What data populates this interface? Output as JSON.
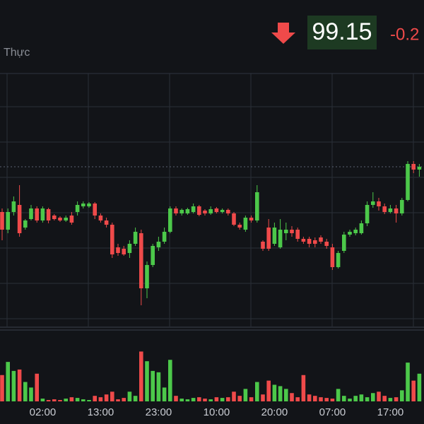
{
  "chart_data": {
    "type": "candlestick",
    "symbol_label": "Thực",
    "last_price": 99.15,
    "change_text": "-0.2",
    "categories": [
      null,
      null,
      null,
      null,
      null,
      null,
      null,
      "02:00",
      null,
      null,
      null,
      null,
      null,
      null,
      null,
      null,
      null,
      "13:00",
      null,
      null,
      null,
      null,
      null,
      null,
      null,
      null,
      null,
      "23:00",
      null,
      null,
      null,
      null,
      null,
      null,
      null,
      null,
      null,
      "10:00",
      null,
      null,
      null,
      null,
      null,
      null,
      null,
      null,
      null,
      "20:00",
      null,
      null,
      null,
      null,
      null,
      null,
      null,
      null,
      null,
      "07:00",
      null,
      null,
      null,
      null,
      null,
      null,
      null,
      null,
      null,
      "17:00",
      null,
      null,
      null,
      null,
      null
    ],
    "open": [
      98.51,
      98.26,
      98.51,
      98.61,
      98.29,
      98.41,
      98.56,
      98.39,
      98.55,
      98.46,
      98.43,
      98.39,
      98.46,
      98.51,
      98.59,
      98.59,
      98.63,
      98.46,
      98.39,
      98.33,
      98.01,
      97.99,
      97.93,
      98.06,
      98.21,
      97.43,
      97.76,
      98.01,
      98.09,
      98.23,
      98.56,
      98.49,
      98.49,
      98.51,
      98.59,
      98.53,
      98.49,
      98.56,
      98.51,
      98.54,
      98.49,
      98.33,
      98.26,
      98.43,
      98.39,
      98.09,
      98.29,
      98.06,
      98.01,
      98.21,
      98.26,
      98.26,
      98.13,
      98.13,
      98.11,
      98.15,
      98.09,
      98.01,
      97.73,
      97.96,
      98.19,
      98.21,
      98.21,
      98.35,
      98.61,
      98.66,
      98.59,
      98.51,
      98.56,
      98.49,
      98.68,
      99.19,
      99.11
    ],
    "high": [
      98.56,
      98.56,
      98.73,
      98.89,
      98.41,
      98.61,
      98.59,
      98.59,
      98.57,
      98.48,
      98.45,
      98.46,
      98.51,
      98.66,
      98.66,
      98.65,
      98.65,
      98.49,
      98.43,
      98.36,
      98.06,
      98.03,
      98.11,
      98.29,
      98.26,
      97.81,
      98.06,
      98.16,
      98.29,
      98.59,
      98.59,
      98.56,
      98.57,
      98.63,
      98.61,
      98.55,
      98.59,
      98.58,
      98.56,
      98.56,
      98.51,
      98.36,
      98.46,
      98.46,
      98.89,
      98.11,
      98.41,
      98.36,
      98.41,
      98.36,
      98.31,
      98.29,
      98.16,
      98.16,
      98.15,
      98.18,
      98.13,
      98.06,
      97.96,
      98.23,
      98.26,
      98.29,
      98.39,
      98.66,
      98.79,
      98.71,
      98.63,
      98.61,
      98.61,
      98.71,
      99.23,
      99.23,
      99.19
    ],
    "low": [
      98.11,
      98.21,
      98.46,
      98.16,
      98.26,
      98.39,
      98.36,
      98.36,
      98.35,
      98.39,
      98.37,
      98.37,
      98.33,
      98.46,
      98.56,
      98.57,
      98.41,
      98.36,
      98.29,
      97.86,
      97.89,
      97.89,
      97.86,
      98.03,
      97.19,
      97.29,
      97.73,
      97.96,
      98.06,
      98.21,
      98.46,
      98.46,
      98.47,
      98.49,
      98.45,
      98.46,
      98.47,
      98.49,
      98.49,
      98.46,
      98.31,
      98.26,
      98.23,
      98.36,
      98.36,
      97.96,
      97.96,
      98.03,
      97.99,
      98.11,
      98.16,
      98.09,
      98.06,
      98.01,
      98.01,
      98.06,
      97.99,
      97.69,
      97.71,
      97.93,
      98.16,
      98.18,
      98.19,
      98.31,
      98.57,
      98.53,
      98.48,
      98.49,
      98.36,
      98.46,
      98.66,
      99.06,
      99.01
    ],
    "close": [
      98.26,
      98.51,
      98.66,
      98.21,
      98.39,
      98.56,
      98.39,
      98.56,
      98.39,
      98.41,
      98.39,
      98.43,
      98.36,
      98.61,
      98.63,
      98.63,
      98.46,
      98.39,
      98.33,
      97.91,
      97.93,
      97.91,
      98.06,
      98.23,
      97.43,
      97.76,
      98.03,
      98.09,
      98.23,
      98.56,
      98.49,
      98.54,
      98.55,
      98.59,
      98.47,
      98.49,
      98.55,
      98.51,
      98.54,
      98.49,
      98.33,
      98.29,
      98.43,
      98.39,
      98.79,
      97.99,
      97.99,
      98.29,
      98.26,
      98.26,
      98.21,
      98.13,
      98.09,
      98.06,
      98.06,
      98.09,
      98.03,
      97.73,
      97.93,
      98.19,
      98.23,
      98.26,
      98.35,
      98.61,
      98.66,
      98.59,
      98.51,
      98.56,
      98.49,
      98.68,
      99.19,
      99.11,
      99.15
    ],
    "volume": [
      38,
      57,
      44,
      46,
      28,
      20,
      40,
      4,
      2,
      3,
      2,
      4,
      6,
      5,
      3,
      2,
      8,
      6,
      10,
      14,
      3,
      5,
      14,
      8,
      72,
      58,
      44,
      42,
      20,
      60,
      8,
      4,
      3,
      5,
      6,
      4,
      3,
      6,
      5,
      6,
      14,
      8,
      18,
      6,
      28,
      10,
      30,
      24,
      22,
      18,
      12,
      6,
      38,
      10,
      8,
      6,
      5,
      4,
      18,
      8,
      4,
      8,
      10,
      6,
      12,
      14,
      8,
      5,
      6,
      16,
      56,
      30,
      40
    ],
    "up_color": "#4cc84a",
    "down_color": "#ef4a4a",
    "ylim": [
      96.89,
      100.47
    ],
    "yticks": [
      97.0,
      97.5,
      98.0,
      98.5,
      99.0,
      99.5,
      100.0
    ],
    "volume_lim": [
      0,
      100
    ],
    "grid": true
  }
}
